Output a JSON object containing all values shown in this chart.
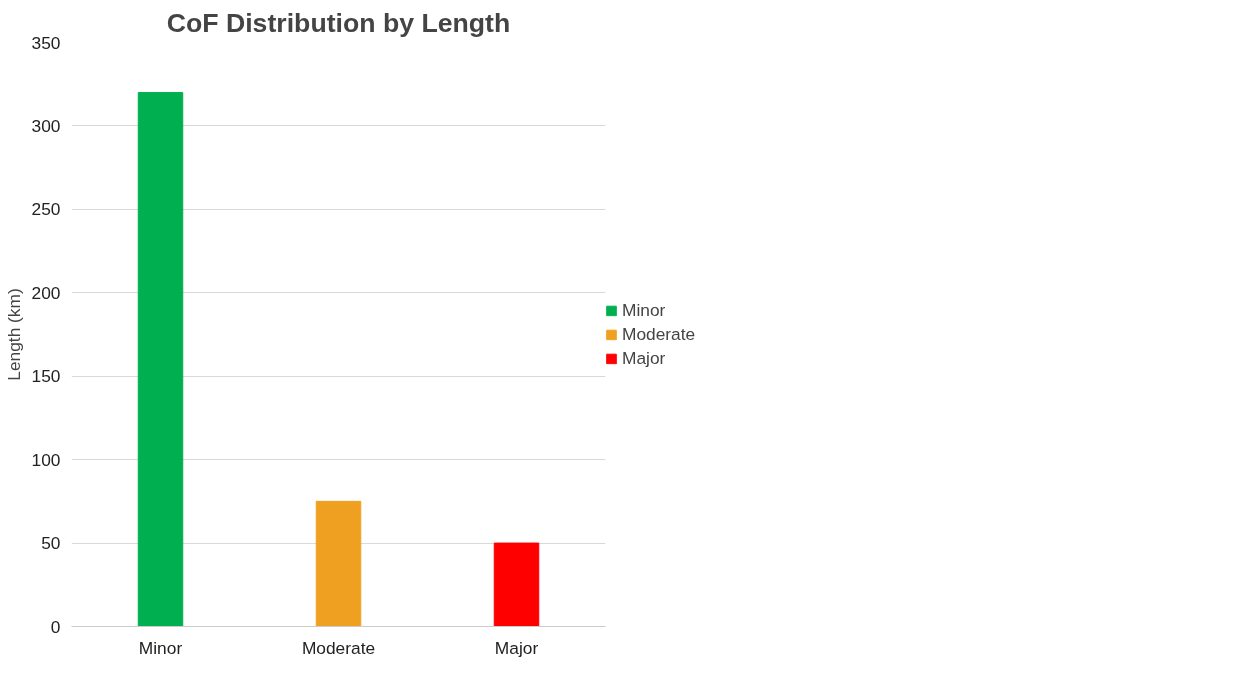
{
  "chart_data": {
    "type": "bar",
    "title": "CoF Distribution by Length",
    "ylabel": "Length (km)",
    "categories": [
      "Minor",
      "Moderate",
      "Major"
    ],
    "series": [
      {
        "name": "Minor",
        "color": "#00b050",
        "values": [
          320,
          null,
          null
        ]
      },
      {
        "name": "Moderate",
        "color": "#f0a020",
        "values": [
          null,
          75,
          null
        ]
      },
      {
        "name": "Major",
        "color": "#ff0000",
        "values": [
          null,
          null,
          50
        ]
      }
    ],
    "stacked": true,
    "ylim": [
      0,
      350
    ],
    "yticks": [
      0,
      50,
      100,
      150,
      200,
      250,
      300,
      350
    ],
    "grid": "y",
    "legend": "right"
  }
}
